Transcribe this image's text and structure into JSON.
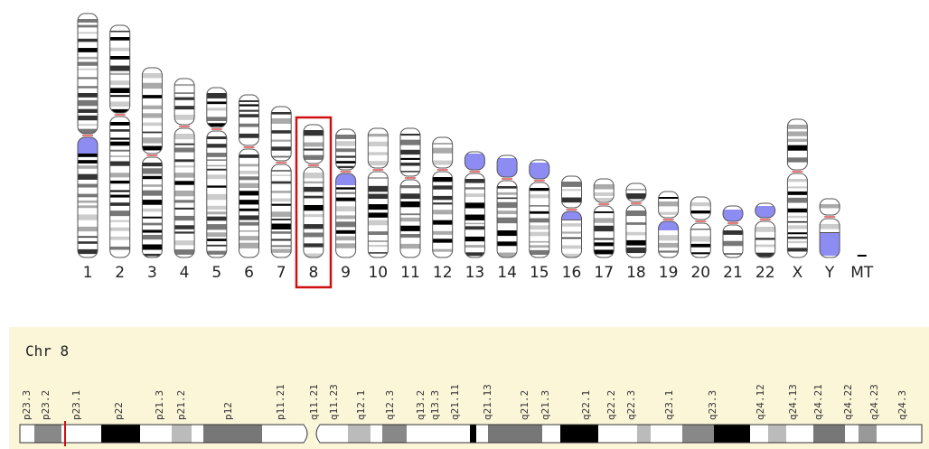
{
  "karyotype": {
    "labels": [
      "1",
      "2",
      "3",
      "4",
      "5",
      "6",
      "7",
      "8",
      "9",
      "10",
      "11",
      "12",
      "13",
      "14",
      "15",
      "16",
      "17",
      "18",
      "19",
      "20",
      "21",
      "22",
      "X",
      "Y",
      "MT"
    ]
  },
  "detail": {
    "title": "Chr 8",
    "bands": [
      "p23.3",
      "p23.2",
      "p23.1",
      "p22",
      "p21.3",
      "p21.2",
      "p12",
      "p11.21",
      "q11.21",
      "q11.23",
      "q12.1",
      "q12.3",
      "q13.2",
      "q13.3",
      "q21.11",
      "q21.13",
      "q21.2",
      "q21.3",
      "q22.1",
      "q22.2",
      "q22.3",
      "q23.1",
      "q23.3",
      "q24.12",
      "q24.13",
      "q24.21",
      "q24.22",
      "q24.23",
      "q24.3"
    ]
  }
}
